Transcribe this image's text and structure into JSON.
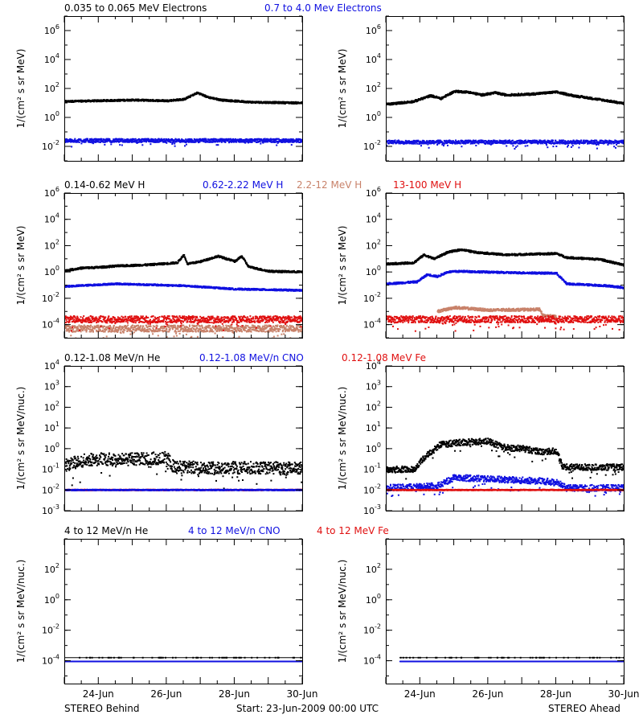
{
  "colors": {
    "black": "#000000",
    "blue": "#1010e0",
    "tan": "#c8826a",
    "red": "#e01010"
  },
  "footer": {
    "left": "STEREO Behind",
    "center": "Start: 23-Jun-2009 00:00 UTC",
    "right": "STEREO Ahead"
  },
  "chart_data": [
    {
      "type": "scatter",
      "row": 0,
      "col": 0,
      "titles": [
        {
          "text": "0.035 to 0.065 MeV Electrons",
          "color": "black"
        },
        {
          "text": "0.7 to 4.0 Mev Electrons",
          "color": "blue"
        }
      ],
      "ylabel": "1/(cm² s sr MeV)",
      "yscale": "log",
      "ylim_exp": [
        -3,
        7
      ],
      "y_ticks": [
        {
          "exp": 6
        },
        {
          "exp": 4
        },
        {
          "exp": 2
        },
        {
          "exp": 0
        },
        {
          "exp": -2
        }
      ],
      "xlim_days": [
        0,
        7
      ],
      "x_ticks": [
        "24-Jun",
        "26-Jun",
        "28-Jun",
        "30-Jun"
      ],
      "x_tick_days": [
        1,
        3,
        5,
        7
      ],
      "series": [
        {
          "color": "black",
          "spread": 0.06,
          "profile": [
            [
              0,
              1.1
            ],
            [
              1,
              1.15
            ],
            [
              2,
              1.2
            ],
            [
              3,
              1.15
            ],
            [
              3.5,
              1.25
            ],
            [
              3.9,
              1.7
            ],
            [
              4.2,
              1.4
            ],
            [
              4.6,
              1.2
            ],
            [
              5.5,
              1.05
            ],
            [
              7,
              1.0
            ]
          ]
        },
        {
          "color": "blue",
          "spread": 0.12,
          "profile": [
            [
              0,
              -1.6
            ],
            [
              7,
              -1.6
            ]
          ]
        }
      ]
    },
    {
      "type": "scatter",
      "row": 0,
      "col": 1,
      "titles": [],
      "ylabel": "1/(cm² s sr MeV)",
      "yscale": "log",
      "ylim_exp": [
        -3,
        7
      ],
      "y_ticks": [
        {
          "exp": 6
        },
        {
          "exp": 4
        },
        {
          "exp": 2
        },
        {
          "exp": 0
        },
        {
          "exp": -2
        }
      ],
      "xlim_days": [
        0,
        7
      ],
      "x_ticks": [
        "24-Jun",
        "26-Jun",
        "28-Jun",
        "30-Jun"
      ],
      "x_tick_days": [
        1,
        3,
        5,
        7
      ],
      "series": [
        {
          "color": "black",
          "spread": 0.07,
          "profile": [
            [
              0,
              0.9
            ],
            [
              0.8,
              1.1
            ],
            [
              1.3,
              1.5
            ],
            [
              1.6,
              1.3
            ],
            [
              2.0,
              1.8
            ],
            [
              2.4,
              1.75
            ],
            [
              2.8,
              1.55
            ],
            [
              3.2,
              1.7
            ],
            [
              3.5,
              1.55
            ],
            [
              4.2,
              1.6
            ],
            [
              5.0,
              1.75
            ],
            [
              5.5,
              1.5
            ],
            [
              6.5,
              1.15
            ],
            [
              7,
              0.95
            ]
          ]
        },
        {
          "color": "blue",
          "spread": 0.12,
          "profile": [
            [
              0,
              -1.7
            ],
            [
              7,
              -1.7
            ]
          ]
        }
      ]
    },
    {
      "type": "scatter",
      "row": 1,
      "col": 0,
      "titles": [
        {
          "text": "0.14-0.62 MeV H",
          "color": "black"
        },
        {
          "text": "0.62-2.22 MeV H",
          "color": "blue"
        },
        {
          "text": "2.2-12 MeV H",
          "color": "tan"
        },
        {
          "text": "13-100 MeV H",
          "color": "red"
        }
      ],
      "ylabel": "1/(cm² s sr MeV)",
      "yscale": "log",
      "ylim_exp": [
        -5,
        6
      ],
      "y_ticks": [
        {
          "exp": 6
        },
        {
          "exp": 4
        },
        {
          "exp": 2
        },
        {
          "exp": 0
        },
        {
          "exp": -2
        },
        {
          "exp": -4
        }
      ],
      "xlim_days": [
        0,
        7
      ],
      "x_ticks": [
        "24-Jun",
        "26-Jun",
        "28-Jun",
        "30-Jun"
      ],
      "x_tick_days": [
        1,
        3,
        5,
        7
      ],
      "series": [
        {
          "color": "black",
          "spread": 0.07,
          "profile": [
            [
              0,
              0.1
            ],
            [
              0.5,
              0.3
            ],
            [
              1.0,
              0.35
            ],
            [
              1.5,
              0.45
            ],
            [
              2.0,
              0.5
            ],
            [
              2.5,
              0.55
            ],
            [
              3.3,
              0.7
            ],
            [
              3.5,
              1.3
            ],
            [
              3.6,
              0.6
            ],
            [
              4.0,
              0.8
            ],
            [
              4.5,
              1.2
            ],
            [
              5.0,
              0.8
            ],
            [
              5.2,
              1.2
            ],
            [
              5.4,
              0.4
            ],
            [
              6,
              0.05
            ],
            [
              7,
              0.0
            ]
          ]
        },
        {
          "color": "blue",
          "spread": 0.06,
          "profile": [
            [
              0,
              -1.1
            ],
            [
              1.5,
              -0.9
            ],
            [
              3.5,
              -1.05
            ],
            [
              5.0,
              -1.3
            ],
            [
              7,
              -1.4
            ]
          ]
        },
        {
          "color": "tan",
          "spread": 0.25,
          "profile": [
            [
              0,
              -4.3
            ],
            [
              7,
              -4.3
            ]
          ]
        },
        {
          "color": "red",
          "spread": 0.25,
          "profile": [
            [
              0,
              -3.6
            ],
            [
              7,
              -3.6
            ]
          ]
        }
      ]
    },
    {
      "type": "scatter",
      "row": 1,
      "col": 1,
      "titles": [],
      "ylabel": "1/(cm² s sr MeV)",
      "yscale": "log",
      "ylim_exp": [
        -5,
        6
      ],
      "y_ticks": [
        {
          "exp": 6
        },
        {
          "exp": 4
        },
        {
          "exp": 2
        },
        {
          "exp": 0
        },
        {
          "exp": -2
        },
        {
          "exp": -4
        }
      ],
      "xlim_days": [
        0,
        7
      ],
      "x_ticks": [
        "24-Jun",
        "26-Jun",
        "28-Jun",
        "30-Jun"
      ],
      "x_tick_days": [
        1,
        3,
        5,
        7
      ],
      "series": [
        {
          "color": "black",
          "spread": 0.07,
          "profile": [
            [
              0,
              0.6
            ],
            [
              0.8,
              0.7
            ],
            [
              1.1,
              1.3
            ],
            [
              1.4,
              1.0
            ],
            [
              1.8,
              1.5
            ],
            [
              2.2,
              1.7
            ],
            [
              2.6,
              1.5
            ],
            [
              3.5,
              1.3
            ],
            [
              5.0,
              1.4
            ],
            [
              5.3,
              1.1
            ],
            [
              6.3,
              0.95
            ],
            [
              7,
              0.5
            ]
          ]
        },
        {
          "color": "blue",
          "spread": 0.07,
          "profile": [
            [
              0,
              -0.9
            ],
            [
              0.9,
              -0.75
            ],
            [
              1.2,
              -0.2
            ],
            [
              1.5,
              -0.35
            ],
            [
              1.8,
              0.0
            ],
            [
              2.2,
              0.05
            ],
            [
              3.5,
              -0.05
            ],
            [
              5.0,
              -0.1
            ],
            [
              5.3,
              -0.9
            ],
            [
              6.5,
              -1.05
            ],
            [
              7,
              -1.2
            ]
          ]
        },
        {
          "color": "tan",
          "spread": 0.1,
          "profile": [
            [
              1.5,
              -3.0
            ],
            [
              2.0,
              -2.7
            ],
            [
              3.0,
              -2.9
            ],
            [
              4.5,
              -2.85
            ],
            [
              4.6,
              -3.3
            ],
            [
              5.0,
              -3.4
            ]
          ]
        },
        {
          "color": "red",
          "spread": 0.25,
          "profile": [
            [
              0,
              -3.6
            ],
            [
              7,
              -3.6
            ]
          ]
        }
      ]
    },
    {
      "type": "scatter",
      "row": 2,
      "col": 0,
      "titles": [
        {
          "text": "0.12-1.08 MeV/n He",
          "color": "black"
        },
        {
          "text": "0.12-1.08 MeV/n CNO",
          "color": "blue"
        },
        {
          "text": "0.12-1.08 MeV Fe",
          "color": "red"
        }
      ],
      "ylabel": "1/(cm² s sr MeV/nuc.)",
      "yscale": "log",
      "ylim_exp": [
        -3,
        4
      ],
      "y_ticks": [
        {
          "exp": 4
        },
        {
          "exp": 3
        },
        {
          "exp": 2
        },
        {
          "exp": 1
        },
        {
          "exp": 0
        },
        {
          "exp": -1
        },
        {
          "exp": -2
        },
        {
          "exp": -3
        }
      ],
      "xlim_days": [
        0,
        7
      ],
      "x_ticks": [
        "24-Jun",
        "26-Jun",
        "28-Jun",
        "30-Jun"
      ],
      "x_tick_days": [
        1,
        3,
        5,
        7
      ],
      "series": [
        {
          "color": "black",
          "spread": 0.3,
          "profile": [
            [
              0,
              -0.8
            ],
            [
              0.6,
              -0.55
            ],
            [
              1.2,
              -0.5
            ],
            [
              2.0,
              -0.5
            ],
            [
              3.0,
              -0.45
            ],
            [
              3.2,
              -0.9
            ],
            [
              7,
              -0.95
            ]
          ]
        },
        {
          "color": "red",
          "spread": 0.02,
          "profile": [
            [
              0,
              -2.0
            ],
            [
              7,
              -2.0
            ]
          ]
        },
        {
          "color": "blue",
          "spread": 0.02,
          "profile": [
            [
              0,
              -2.0
            ],
            [
              7,
              -2.0
            ]
          ]
        }
      ]
    },
    {
      "type": "scatter",
      "row": 2,
      "col": 1,
      "titles": [],
      "ylabel": "1/(cm² s sr MeV/nuc.)",
      "yscale": "log",
      "ylim_exp": [
        -3,
        4
      ],
      "y_ticks": [
        {
          "exp": 4
        },
        {
          "exp": 3
        },
        {
          "exp": 2
        },
        {
          "exp": 1
        },
        {
          "exp": 0
        },
        {
          "exp": -1
        },
        {
          "exp": -2
        },
        {
          "exp": -3
        }
      ],
      "xlim_days": [
        0,
        7
      ],
      "x_ticks": [
        "24-Jun",
        "26-Jun",
        "28-Jun",
        "30-Jun"
      ],
      "x_tick_days": [
        1,
        3,
        5,
        7
      ],
      "series": [
        {
          "color": "black",
          "spread": 0.15,
          "profile": [
            [
              0,
              -1.0
            ],
            [
              0.8,
              -1.0
            ],
            [
              1.2,
              -0.3
            ],
            [
              1.6,
              0.2
            ],
            [
              2.2,
              0.3
            ],
            [
              3.0,
              0.35
            ],
            [
              3.5,
              0.05
            ],
            [
              4.0,
              0.0
            ],
            [
              4.5,
              -0.15
            ],
            [
              5.0,
              -0.1
            ],
            [
              5.2,
              -0.9
            ],
            [
              7,
              -0.9
            ]
          ]
        },
        {
          "color": "blue",
          "spread": 0.15,
          "profile": [
            [
              0,
              -1.9
            ],
            [
              1.5,
              -1.8
            ],
            [
              2.0,
              -1.4
            ],
            [
              3.5,
              -1.5
            ],
            [
              5.0,
              -1.6
            ],
            [
              5.3,
              -1.9
            ],
            [
              7,
              -1.9
            ]
          ]
        },
        {
          "color": "red",
          "spread": 0.02,
          "profile": [
            [
              0,
              -2.0
            ],
            [
              7,
              -2.0
            ]
          ]
        }
      ]
    },
    {
      "type": "scatter",
      "row": 3,
      "col": 0,
      "titles": [
        {
          "text": "4 to 12 MeV/n He",
          "color": "black"
        },
        {
          "text": "4 to 12 MeV/n CNO",
          "color": "blue"
        },
        {
          "text": "4 to 12 MeV Fe",
          "color": "red"
        }
      ],
      "ylabel": "1/(cm² s sr MeV/nuc.)",
      "yscale": "log",
      "ylim_exp": [
        -5.5,
        4
      ],
      "y_ticks": [
        {
          "exp": 2
        },
        {
          "exp": 0
        },
        {
          "exp": -2
        },
        {
          "exp": -4
        }
      ],
      "xlim_days": [
        0,
        7
      ],
      "x_ticks": [
        "24-Jun",
        "26-Jun",
        "28-Jun",
        "30-Jun"
      ],
      "x_tick_days": [
        1,
        3,
        5,
        7
      ],
      "series": [
        {
          "color": "blue",
          "spread": 0.0,
          "profile": [
            [
              0,
              -4.05
            ],
            [
              7,
              -4.05
            ]
          ]
        },
        {
          "color": "black",
          "spread": 0.0,
          "sparse": true,
          "profile": [
            [
              0,
              -3.8
            ],
            [
              7,
              -3.8
            ]
          ]
        }
      ]
    },
    {
      "type": "scatter",
      "row": 3,
      "col": 1,
      "titles": [],
      "ylabel": "1/(cm² s sr MeV/nuc.)",
      "yscale": "log",
      "ylim_exp": [
        -5.5,
        4
      ],
      "y_ticks": [
        {
          "exp": 2
        },
        {
          "exp": 0
        },
        {
          "exp": -2
        },
        {
          "exp": -4
        }
      ],
      "xlim_days": [
        0,
        7
      ],
      "x_ticks": [
        "24-Jun",
        "26-Jun",
        "28-Jun",
        "30-Jun"
      ],
      "x_tick_days": [
        1,
        3,
        5,
        7
      ],
      "series": [
        {
          "color": "blue",
          "spread": 0.0,
          "profile": [
            [
              0.4,
              -4.05
            ],
            [
              7,
              -4.05
            ]
          ]
        },
        {
          "color": "black",
          "spread": 0.0,
          "sparse": true,
          "profile": [
            [
              0.4,
              -3.8
            ],
            [
              7,
              -3.8
            ]
          ]
        }
      ]
    }
  ]
}
